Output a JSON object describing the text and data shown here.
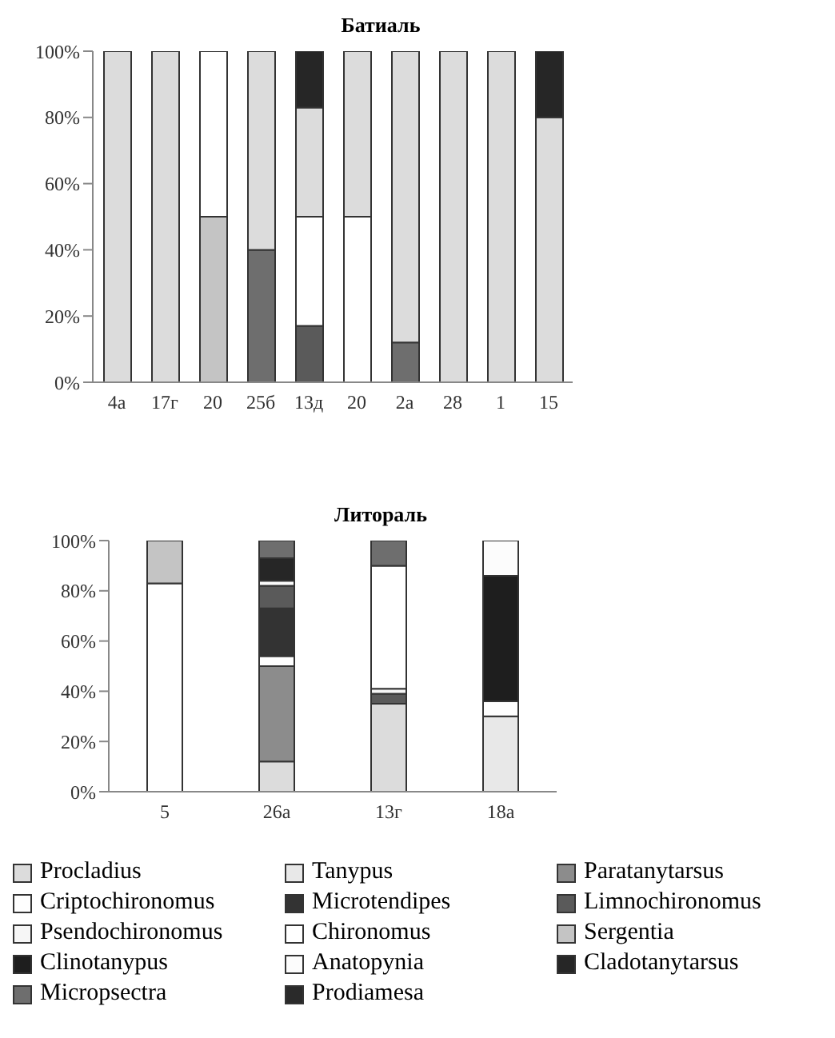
{
  "chart_data": [
    {
      "type": "bar",
      "title": "Батиаль",
      "stacked": true,
      "legend": false,
      "grid": false,
      "categories": [
        "4а",
        "17г",
        "20",
        "25б",
        "13д",
        "20",
        "2а",
        "28",
        "1",
        "15"
      ],
      "ylim": [
        0,
        100
      ],
      "yticks": [
        {
          "value": 0,
          "label": "0%"
        },
        {
          "value": 20,
          "label": "20%"
        },
        {
          "value": 40,
          "label": "40%"
        },
        {
          "value": 60,
          "label": "60%"
        },
        {
          "value": 80,
          "label": "80%"
        },
        {
          "value": 100,
          "label": "100%"
        }
      ],
      "series": [
        {
          "color": "#6e6e6e",
          "values": [
            null,
            null,
            null,
            40,
            null,
            null,
            12,
            null,
            null,
            null
          ]
        },
        {
          "color": "#5a5a5a",
          "values": [
            null,
            null,
            null,
            null,
            17,
            null,
            null,
            null,
            null,
            null
          ]
        },
        {
          "color": "#c4c4c4",
          "values": [
            null,
            null,
            50,
            null,
            null,
            null,
            null,
            null,
            null,
            null
          ]
        },
        {
          "color": "#ffffff",
          "values": [
            null,
            null,
            50,
            null,
            33,
            50,
            null,
            null,
            null,
            null
          ]
        },
        {
          "color": "#dcdcdc",
          "values": [
            100,
            100,
            null,
            60,
            33,
            50,
            88,
            100,
            100,
            80
          ]
        },
        {
          "color": "#262626",
          "values": [
            null,
            null,
            null,
            null,
            17,
            null,
            null,
            null,
            null,
            20
          ]
        }
      ]
    },
    {
      "type": "bar",
      "title": "Литораль",
      "stacked": true,
      "legend": "bottom",
      "grid": false,
      "categories": [
        "5",
        "26а",
        "13г",
        "18а"
      ],
      "ylim": [
        0,
        100
      ],
      "yticks": [
        {
          "value": 0,
          "label": "0%"
        },
        {
          "value": 20,
          "label": "20%"
        },
        {
          "value": 40,
          "label": "40%"
        },
        {
          "value": 60,
          "label": "60%"
        },
        {
          "value": 80,
          "label": "80%"
        },
        {
          "value": 100,
          "label": "100%"
        }
      ],
      "series": [
        {
          "name": "Procladius",
          "color": "#dcdcdc",
          "values": [
            null,
            12,
            35,
            null
          ]
        },
        {
          "name": "Tanypus",
          "color": "#e8e8e8",
          "values": [
            null,
            null,
            null,
            30
          ]
        },
        {
          "name": "Paratanytarsus",
          "color": "#8c8c8c",
          "values": [
            null,
            38,
            null,
            null
          ]
        },
        {
          "name": "Criptochironomus",
          "color": "#fefefe",
          "values": [
            null,
            4,
            null,
            6
          ]
        },
        {
          "name": "Microtendipes",
          "color": "#333333",
          "values": [
            null,
            19,
            null,
            null
          ]
        },
        {
          "name": "Limnochironomus",
          "color": "#5a5a5a",
          "values": [
            null,
            9,
            4,
            null
          ]
        },
        {
          "name": "Psendochironomus",
          "color": "#f6f6f6",
          "values": [
            null,
            null,
            2,
            null
          ]
        },
        {
          "name": "Chironomus",
          "color": "#ffffff",
          "values": [
            83,
            null,
            49,
            null
          ]
        },
        {
          "name": "Sergentia",
          "color": "#c4c4c4",
          "values": [
            17,
            null,
            null,
            null
          ]
        },
        {
          "name": "Clinotanypus",
          "color": "#1e1e1e",
          "values": [
            null,
            null,
            null,
            50
          ]
        },
        {
          "name": "Anatopynia",
          "color": "#fcfcfc",
          "values": [
            null,
            2,
            null,
            14
          ]
        },
        {
          "name": "Cladotanytarsus",
          "color": "#262626",
          "values": [
            null,
            9,
            null,
            null
          ]
        },
        {
          "name": "Micropsectra",
          "color": "#6e6e6e",
          "values": [
            null,
            7,
            10,
            null
          ]
        },
        {
          "name": "Prodiamesa",
          "color": "#2a2a2a",
          "values": [
            null,
            null,
            null,
            null
          ]
        }
      ]
    }
  ]
}
